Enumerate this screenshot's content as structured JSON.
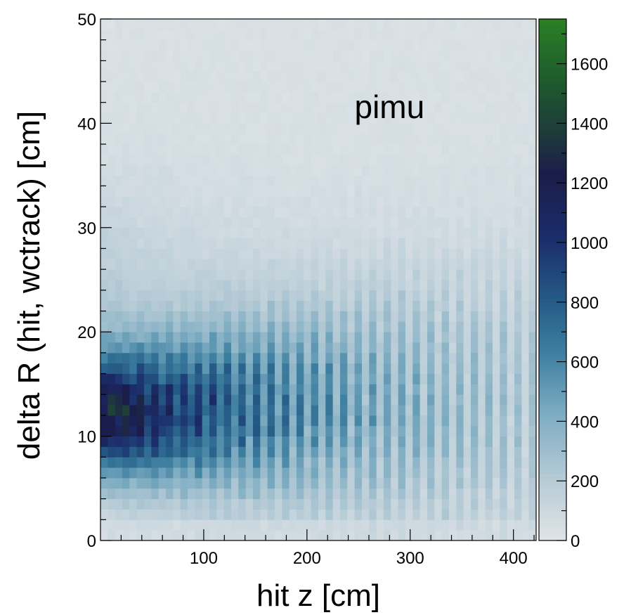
{
  "chart_data": {
    "type": "heatmap",
    "title": "",
    "annotation": "pimu",
    "xlabel": "hit z [cm]",
    "ylabel": "delta R (hit, wctrack) [cm]",
    "xlim": [
      0,
      422
    ],
    "ylim": [
      0,
      50
    ],
    "x_ticks": [
      100,
      200,
      300,
      400
    ],
    "y_ticks": [
      0,
      10,
      20,
      30,
      40,
      50
    ],
    "z_range": [
      0,
      1750
    ],
    "z_ticks": [
      0,
      200,
      400,
      600,
      800,
      1000,
      1200,
      1400,
      1600
    ],
    "x_bins": {
      "count": 60,
      "width": 7.033
    },
    "y_bins": {
      "count": 50,
      "width": 1
    },
    "grid": false,
    "legend": "colorbar-right",
    "colorscale": [
      {
        "stop": 0.0,
        "color": "#dfe4e7"
      },
      {
        "stop": 0.12,
        "color": "#b6cbd6"
      },
      {
        "stop": 0.25,
        "color": "#7aaac0"
      },
      {
        "stop": 0.36,
        "color": "#3e7fa0"
      },
      {
        "stop": 0.46,
        "color": "#255b86"
      },
      {
        "stop": 0.58,
        "color": "#1b2d6b"
      },
      {
        "stop": 0.7,
        "color": "#1b1c4a"
      },
      {
        "stop": 0.78,
        "color": "#1e3a3c"
      },
      {
        "stop": 0.88,
        "color": "#1f5a2e"
      },
      {
        "stop": 1.0,
        "color": "#2a8025"
      }
    ],
    "features": {
      "peak_value": 1750,
      "peak_location": {
        "x_range": [
          0,
          50
        ],
        "y_range": [
          3,
          17
        ]
      },
      "band_peak_y": 12,
      "band_width_near": 4,
      "band_width_far": 9,
      "falloff_z": 200,
      "background_value": 60,
      "band_spacing_z": 14
    }
  }
}
